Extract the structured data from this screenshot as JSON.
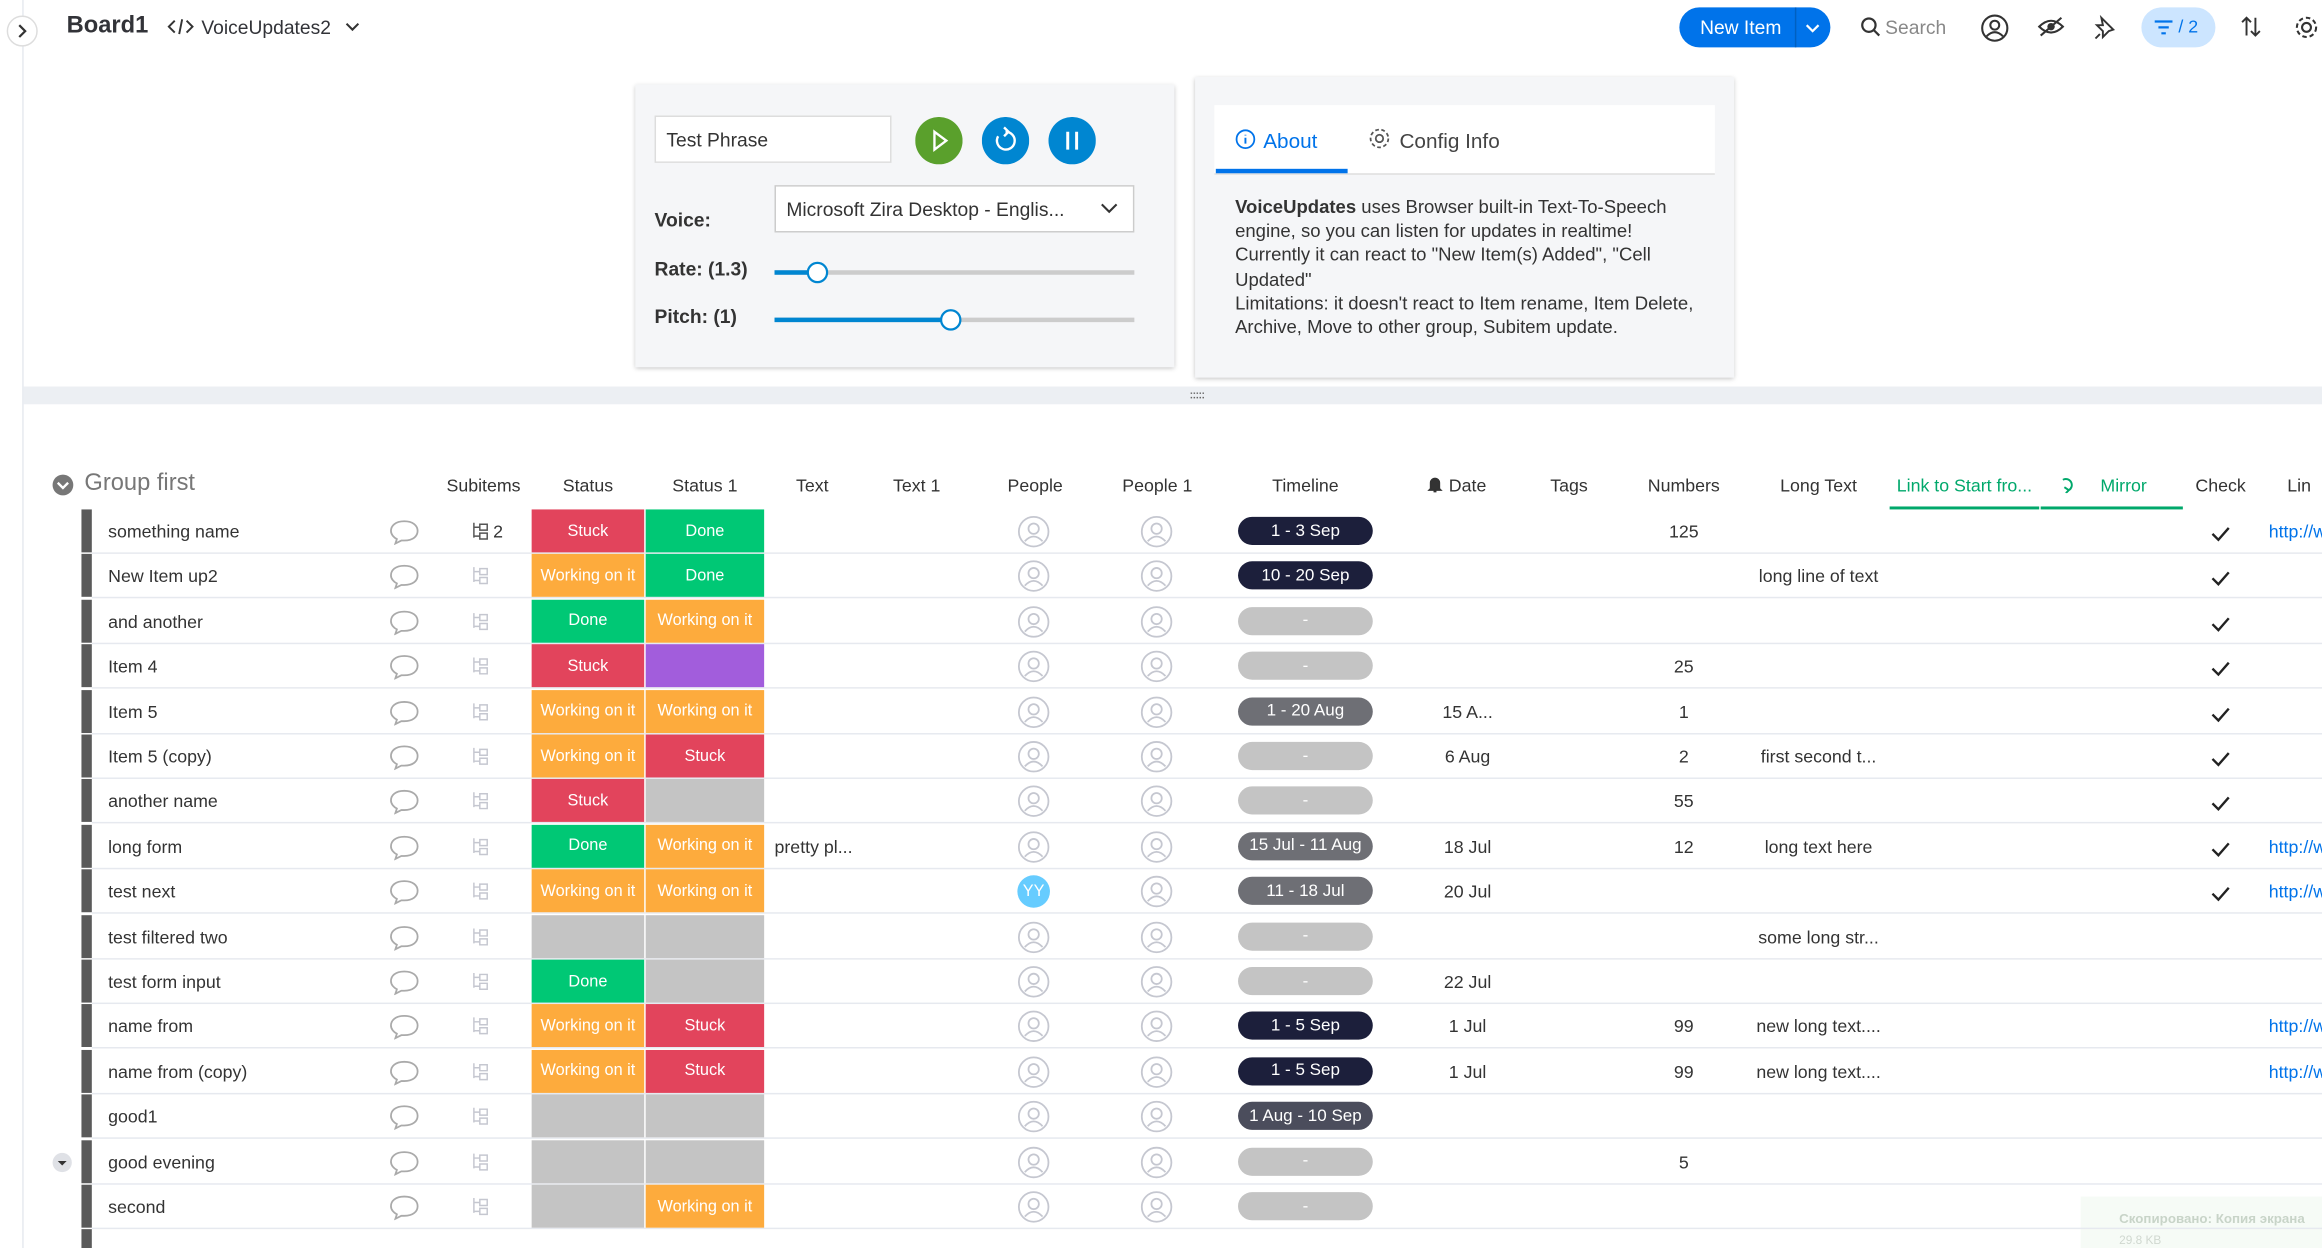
{
  "header": {
    "board": "Board1",
    "view": "VoiceUpdates2",
    "new_item": "New Item",
    "search": "Search",
    "filter": "/ 2"
  },
  "voice_panel": {
    "phrase": "Test Phrase",
    "voice_label": "Voice:",
    "voice": "Microsoft Zira Desktop - Englis...",
    "rate": "Rate: (1.3)",
    "pitch": "Pitch: (1)"
  },
  "about_panel": {
    "tabs": [
      "About",
      "Config Info"
    ],
    "lead": "VoiceUpdates",
    "lines": [
      " uses Browser built-in Text-To-Speech engine, so you can listen for updates in realtime!",
      "Currently it can react to \"New Item(s) Added\", \"Cell Updated\"",
      "Limitations: it doesn't react to Item rename, Item Delete, Archive, Move to other group, Subitem update."
    ]
  },
  "group": {
    "title": "Group first",
    "columns": [
      "Subitems",
      "Status",
      "Status 1",
      "Text",
      "Text 1",
      "People",
      "People 1",
      "Timeline",
      "Date",
      "Tags",
      "Numbers",
      "Long Text",
      "Link to Start fro...",
      "Mirror",
      "Check",
      "Lin"
    ],
    "rows": [
      {
        "name": "something name",
        "subitems": 2,
        "status": {
          "label": "Stuck",
          "color": "#e2445c"
        },
        "status_1": {
          "label": "Done",
          "color": "#00c875"
        },
        "timeline": {
          "label": "1 - 3 Sep",
          "color": "#1c1f3b"
        },
        "numbers": 125,
        "check": true,
        "link": "http://w"
      },
      {
        "name": "New Item up2",
        "status": {
          "label": "Working on it",
          "color": "#fdab3d"
        },
        "status_1": {
          "label": "Done",
          "color": "#00c875"
        },
        "timeline": {
          "label": "10 - 20 Sep",
          "color": "#1c1f3b"
        },
        "long_text": "long line of text",
        "check": true
      },
      {
        "name": "and another",
        "status": {
          "label": "Done",
          "color": "#00c875"
        },
        "status_1": {
          "label": "Working on it",
          "color": "#fdab3d"
        },
        "timeline": {
          "label": "-",
          "color": "#c4c4c4"
        },
        "check": true
      },
      {
        "name": "Item 4",
        "status": {
          "label": "Stuck",
          "color": "#e2445c"
        },
        "status_1": {
          "color": "#a25ddc"
        },
        "timeline": {
          "label": "-",
          "color": "#c4c4c4"
        },
        "numbers": 25,
        "check": true
      },
      {
        "name": "Item 5",
        "status": {
          "label": "Working on it",
          "color": "#fdab3d"
        },
        "status_1": {
          "label": "Working on it",
          "color": "#fdab3d"
        },
        "timeline": {
          "label": "1 - 20 Aug",
          "color": "#6e6f75"
        },
        "date": "15 A...",
        "numbers": 1,
        "check": true
      },
      {
        "name": "Item 5 (copy)",
        "status": {
          "label": "Working on it",
          "color": "#fdab3d"
        },
        "status_1": {
          "label": "Stuck",
          "color": "#e2445c"
        },
        "timeline": {
          "label": "-",
          "color": "#c4c4c4"
        },
        "date": "6 Aug",
        "numbers": 2,
        "long_text": "first second t...",
        "check": true
      },
      {
        "name": "another name",
        "status": {
          "label": "Stuck",
          "color": "#e2445c"
        },
        "status_1": {
          "color": "#c4c4c4"
        },
        "timeline": {
          "label": "-",
          "color": "#c4c4c4"
        },
        "numbers": 55,
        "check": true
      },
      {
        "name": "long form",
        "status": {
          "label": "Done",
          "color": "#00c875"
        },
        "status_1": {
          "label": "Working on it",
          "color": "#fdab3d"
        },
        "text": "pretty pl...",
        "timeline": {
          "label": "15 Jul - 11 Aug",
          "color": "#6e6f75"
        },
        "date": "18 Jul",
        "numbers": 12,
        "long_text": "long text here",
        "check": true,
        "link": "http://w"
      },
      {
        "name": "test next",
        "status": {
          "label": "Working on it",
          "color": "#fdab3d"
        },
        "status_1": {
          "label": "Working on it",
          "color": "#fdab3d"
        },
        "people": "YY",
        "timeline": {
          "label": "11 - 18 Jul",
          "color": "#6e6f75"
        },
        "date": "20 Jul",
        "check": true,
        "link": "http://w"
      },
      {
        "name": "test filtered two",
        "status": {
          "color": "#c4c4c4"
        },
        "status_1": {
          "color": "#c4c4c4"
        },
        "timeline": {
          "label": "-",
          "color": "#c4c4c4"
        },
        "long_text": "some long str..."
      },
      {
        "name": "test form input",
        "status": {
          "label": "Done",
          "color": "#00c875"
        },
        "status_1": {
          "color": "#c4c4c4"
        },
        "timeline": {
          "label": "-",
          "color": "#c4c4c4"
        },
        "date": "22 Jul"
      },
      {
        "name": "name from",
        "status": {
          "label": "Working on it",
          "color": "#fdab3d"
        },
        "status_1": {
          "label": "Stuck",
          "color": "#e2445c"
        },
        "timeline": {
          "label": "1 - 5 Sep",
          "color": "#1c1f3b"
        },
        "date": "1 Jul",
        "numbers": 99,
        "long_text": "new long text....",
        "link": "http://w"
      },
      {
        "name": "name from (copy)",
        "status": {
          "label": "Working on it",
          "color": "#fdab3d"
        },
        "status_1": {
          "label": "Stuck",
          "color": "#e2445c"
        },
        "timeline": {
          "label": "1 - 5 Sep",
          "color": "#1c1f3b"
        },
        "date": "1 Jul",
        "numbers": 99,
        "long_text": "new long text....",
        "link": "http://w"
      },
      {
        "name": "good1",
        "status": {
          "color": "#c4c4c4"
        },
        "status_1": {
          "color": "#c4c4c4"
        },
        "timeline": {
          "label": "1 Aug - 10 Sep",
          "color": "#4b4d5c"
        }
      },
      {
        "name": "good evening",
        "status": {
          "color": "#c4c4c4"
        },
        "status_1": {
          "color": "#c4c4c4"
        },
        "timeline": {
          "label": "-",
          "color": "#c4c4c4"
        },
        "numbers": 5
      },
      {
        "name": "second",
        "status": {
          "color": "#c4c4c4"
        },
        "status_1": {
          "label": "Working on it",
          "color": "#fdab3d"
        },
        "timeline": {
          "label": "-",
          "color": "#c4c4c4"
        }
      }
    ]
  },
  "toast": {
    "title": "Скопировано: Копия экрана",
    "size": "29.8 KB"
  }
}
